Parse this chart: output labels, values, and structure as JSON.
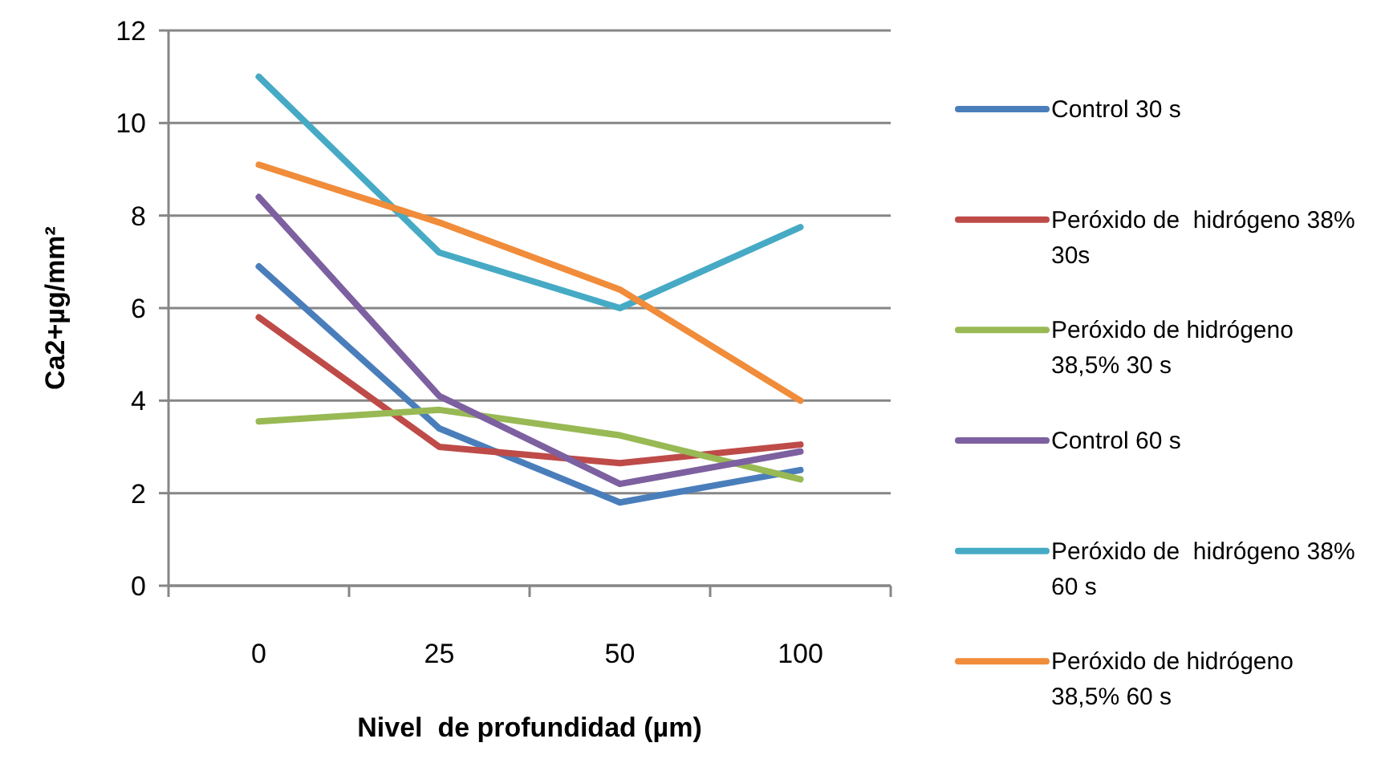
{
  "chart_data": {
    "type": "line",
    "xlabel": "Nivel  de profundidad (µm)",
    "ylabel": "Ca2+µg/mm²",
    "categories": [
      "0",
      "25",
      "50",
      "100"
    ],
    "ylim": [
      0,
      12
    ],
    "yticks": [
      0,
      2,
      4,
      6,
      8,
      10,
      12
    ],
    "grid": "y",
    "legend": "right",
    "marker": "none",
    "line_style": "solid",
    "series": [
      {
        "name": "Control 30 s",
        "color": "#4a7ebb",
        "values": [
          6.9,
          3.4,
          1.8,
          2.5
        ]
      },
      {
        "name": "Peróxido de  hidrógeno 38%  30s",
        "color": "#be4b48",
        "values": [
          5.8,
          3.0,
          2.65,
          3.05
        ]
      },
      {
        "name": "Peróxido de hidrógeno 38,5% 30 s",
        "color": "#98b954",
        "values": [
          3.55,
          3.8,
          3.25,
          2.3
        ]
      },
      {
        "name": "Control 60 s",
        "color": "#7d60a0",
        "values": [
          8.4,
          4.1,
          2.2,
          2.9
        ]
      },
      {
        "name": "Peróxido de  hidrógeno 38%  60 s",
        "color": "#46aac5",
        "values": [
          11.0,
          7.2,
          6.0,
          7.75
        ]
      },
      {
        "name": "Peróxido de hidrógeno 38,5% 60 s",
        "color": "#f08c3a",
        "values": [
          9.1,
          7.85,
          6.4,
          4.0
        ]
      }
    ]
  }
}
